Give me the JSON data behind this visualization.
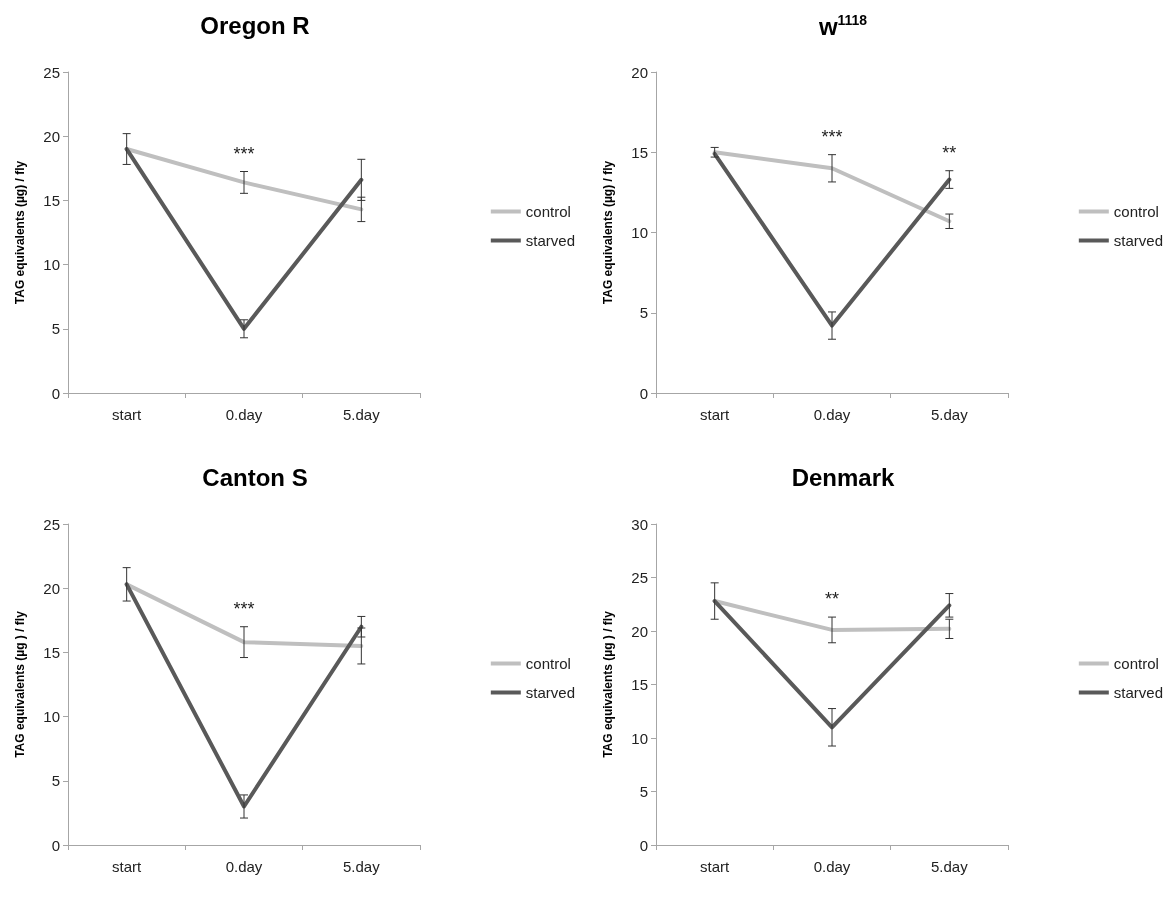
{
  "chart_data": [
    {
      "type": "line",
      "title": "Oregon R",
      "ylabel": "TAG equivalents (µg) / fly",
      "categories": [
        "start",
        "0.day",
        "5.day"
      ],
      "ylim": [
        0,
        25
      ],
      "yticks": [
        0,
        5,
        10,
        15,
        20,
        25
      ],
      "grid": false,
      "legend": "right",
      "marker": "none",
      "line_style": "solid",
      "series": [
        {
          "name": "control",
          "color": "#bfbfbf",
          "values": [
            19.0,
            16.4,
            14.3
          ],
          "errors": [
            1.2,
            0.85,
            0.95
          ]
        },
        {
          "name": "starved",
          "color": "#595959",
          "values": [
            19.0,
            5.0,
            16.6
          ],
          "errors": [
            null,
            0.7,
            1.6
          ]
        }
      ],
      "annotations": [
        "***"
      ]
    },
    {
      "type": "line",
      "title": "w$^{1118}$",
      "ylabel": "TAG equivalents (µg) / fly",
      "categories": [
        "start",
        "0.day",
        "5.day"
      ],
      "ylim": [
        0,
        20
      ],
      "yticks": [
        0,
        5,
        10,
        15,
        20
      ],
      "grid": false,
      "legend": "right",
      "marker": "none",
      "line_style": "solid",
      "series": [
        {
          "name": "control",
          "color": "#bfbfbf",
          "values": [
            15.0,
            14.0,
            10.7
          ],
          "errors": [
            0.3,
            0.85,
            0.45
          ]
        },
        {
          "name": "starved",
          "color": "#595959",
          "values": [
            14.9,
            4.2,
            13.3
          ],
          "errors": [
            null,
            0.85,
            0.55
          ]
        }
      ],
      "annotations": [
        "***",
        "**"
      ]
    },
    {
      "type": "line",
      "title": "Canton S",
      "ylabel": "TAG equivalents (µg ) / fly",
      "categories": [
        "start",
        "0.day",
        "5.day"
      ],
      "ylim": [
        0,
        25
      ],
      "yticks": [
        0,
        5,
        10,
        15,
        20,
        25
      ],
      "grid": false,
      "legend": "right",
      "marker": "none",
      "line_style": "solid",
      "series": [
        {
          "name": "control",
          "color": "#bfbfbf",
          "values": [
            20.3,
            15.8,
            15.5
          ],
          "errors": [
            1.3,
            1.2,
            1.4
          ]
        },
        {
          "name": "starved",
          "color": "#595959",
          "values": [
            20.3,
            3.0,
            17.0
          ],
          "errors": [
            null,
            0.9,
            0.8
          ]
        }
      ],
      "annotations": [
        "***"
      ]
    },
    {
      "type": "line",
      "title": "Denmark",
      "ylabel": "TAG equivalents (µg ) / fly",
      "categories": [
        "start",
        "0.day",
        "5.day"
      ],
      "ylim": [
        0,
        30
      ],
      "yticks": [
        0,
        5,
        10,
        15,
        20,
        25,
        30
      ],
      "grid": false,
      "legend": "right",
      "marker": "none",
      "line_style": "solid",
      "series": [
        {
          "name": "control",
          "color": "#bfbfbf",
          "values": [
            22.8,
            20.1,
            20.2
          ],
          "errors": [
            1.7,
            1.2,
            0.9
          ]
        },
        {
          "name": "starved",
          "color": "#595959",
          "values": [
            22.8,
            11.0,
            22.4
          ],
          "errors": [
            null,
            1.75,
            1.1
          ]
        }
      ],
      "annotations": [
        "**"
      ]
    }
  ]
}
